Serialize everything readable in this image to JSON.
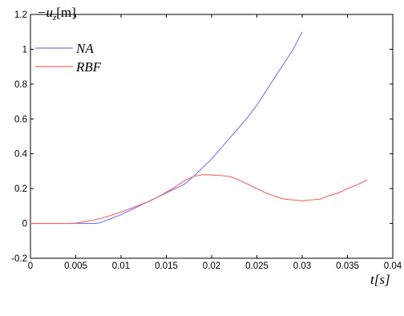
{
  "chart_data": {
    "type": "line",
    "title": "",
    "xlabel": "t[s]",
    "ylabel": "−u_z[m]",
    "ylabel_parts": {
      "sign": "−",
      "var": "u",
      "sub": "z",
      "unit": "[m]"
    },
    "xlim": [
      0,
      0.04
    ],
    "ylim": [
      -0.2,
      1.2
    ],
    "xticks": [
      "0",
      "0.005",
      "0.01",
      "0.015",
      "0.02",
      "0.025",
      "0.03",
      "0.035",
      "0.04"
    ],
    "yticks": [
      "-0.2",
      "0",
      "0.2",
      "0.4",
      "0.6",
      "0.8",
      "1",
      "1.2"
    ],
    "grid": false,
    "legend_position": "top-left",
    "series": [
      {
        "name": "NA",
        "color": "#7777ee",
        "x": [
          0,
          0.002,
          0.004,
          0.006,
          0.007,
          0.0075,
          0.008,
          0.009,
          0.01,
          0.011,
          0.012,
          0.013,
          0.014,
          0.015,
          0.016,
          0.017,
          0.018,
          0.019,
          0.02,
          0.021,
          0.022,
          0.023,
          0.024,
          0.025,
          0.026,
          0.027,
          0.028,
          0.029,
          0.03
        ],
        "y": [
          0,
          0,
          0,
          0,
          0,
          0.002,
          0.01,
          0.03,
          0.05,
          0.075,
          0.1,
          0.125,
          0.15,
          0.175,
          0.2,
          0.225,
          0.27,
          0.32,
          0.37,
          0.43,
          0.49,
          0.55,
          0.61,
          0.68,
          0.76,
          0.84,
          0.92,
          1.0,
          1.1
        ]
      },
      {
        "name": "RBF",
        "color": "#ee6666",
        "x": [
          0,
          0.002,
          0.004,
          0.005,
          0.006,
          0.007,
          0.008,
          0.009,
          0.01,
          0.011,
          0.012,
          0.013,
          0.014,
          0.015,
          0.016,
          0.017,
          0.018,
          0.019,
          0.02,
          0.021,
          0.022,
          0.023,
          0.024,
          0.025,
          0.026,
          0.027,
          0.028,
          0.029,
          0.03,
          0.031,
          0.032,
          0.033,
          0.034,
          0.035,
          0.036,
          0.0372
        ],
        "y": [
          0,
          0,
          0,
          0.002,
          0.01,
          0.02,
          0.032,
          0.048,
          0.065,
          0.085,
          0.105,
          0.125,
          0.15,
          0.18,
          0.21,
          0.245,
          0.27,
          0.28,
          0.278,
          0.275,
          0.27,
          0.25,
          0.225,
          0.2,
          0.175,
          0.155,
          0.14,
          0.135,
          0.13,
          0.135,
          0.14,
          0.16,
          0.175,
          0.2,
          0.22,
          0.25
        ]
      }
    ]
  }
}
